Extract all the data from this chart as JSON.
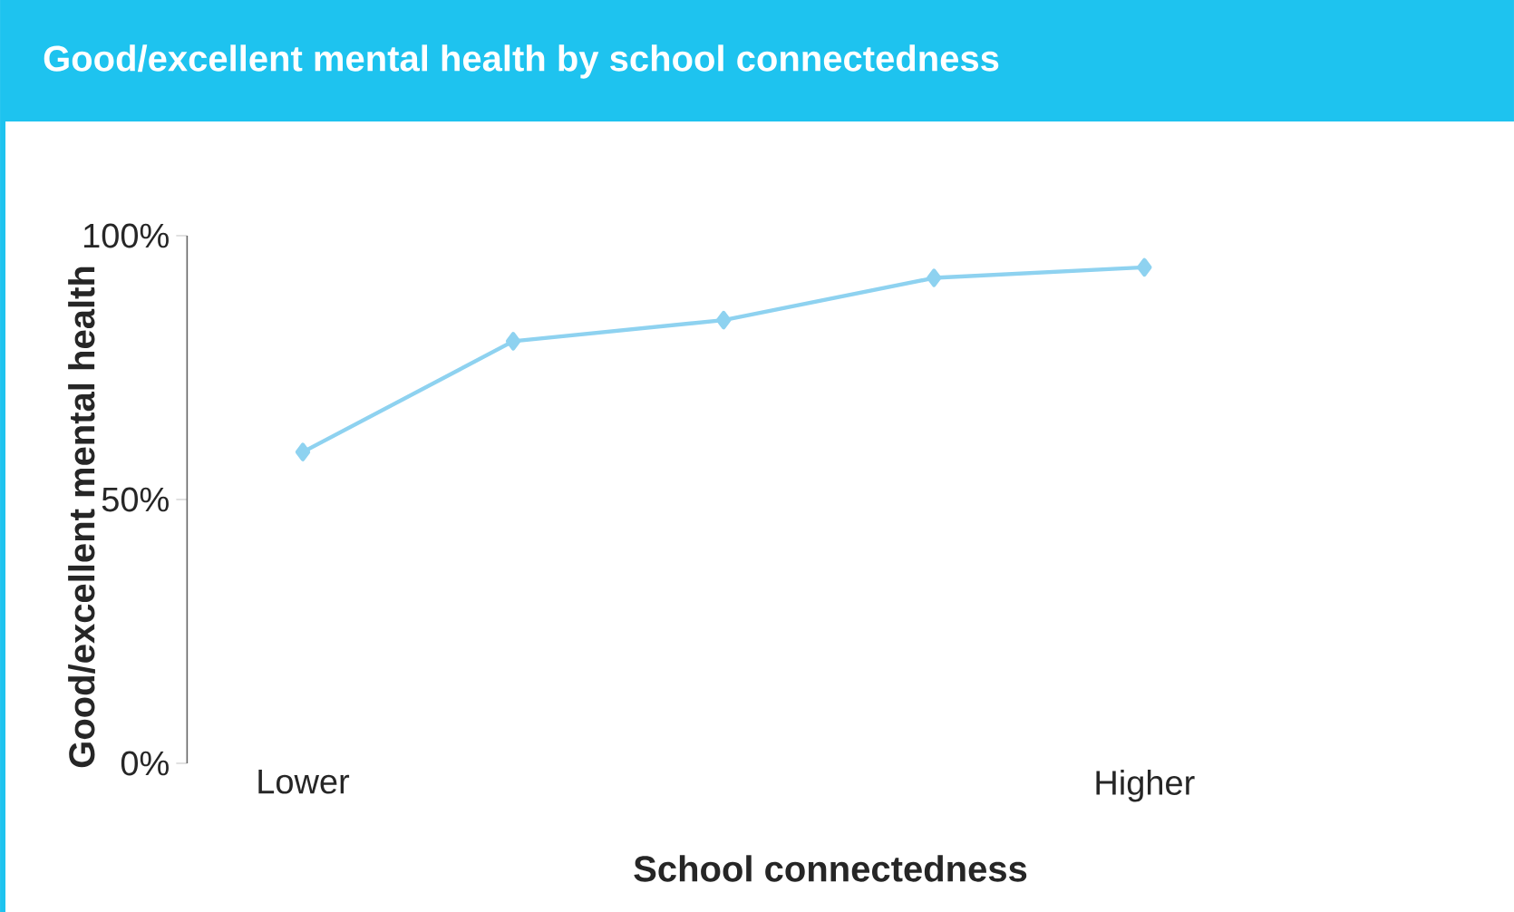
{
  "chart_data": {
    "type": "line",
    "title": "Good/excellent mental health by school connectedness",
    "xlabel": "School connectedness",
    "ylabel": "Good/excellent mental health",
    "categories": [
      "Lower",
      null,
      null,
      null,
      "Higher"
    ],
    "series": [
      {
        "color": "#8ed2f0",
        "values": [
          59,
          80,
          84,
          92,
          94
        ]
      }
    ],
    "ylim": [
      0,
      100
    ],
    "yticks": [
      {
        "value": 0,
        "label": "0%"
      },
      {
        "value": 50,
        "label": "50%"
      },
      {
        "value": 100,
        "label": "100%"
      }
    ],
    "marker": "diamond",
    "line_style": "solid",
    "grid": false,
    "legend": false
  }
}
